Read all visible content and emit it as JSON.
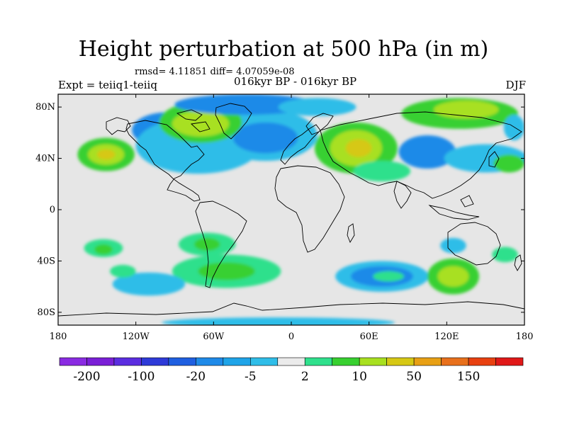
{
  "title": "Height perturbation at 500 hPa (in m)",
  "stats": "rmsd= 4.11851 diff= 4.07059e-08",
  "left_label": "Expt = teiiq1-teiiq",
  "center_label": "016kyr BP - 016kyr BP",
  "right_label": "DJF",
  "map": {
    "projection": "cylindrical-equidistant",
    "lon_range": [
      -180,
      180
    ],
    "lat_range": [
      -90,
      90
    ],
    "lat_ticks": [
      {
        "value": 80,
        "label": "80N"
      },
      {
        "value": 40,
        "label": "40N"
      },
      {
        "value": 0,
        "label": "0"
      },
      {
        "value": -40,
        "label": "40S"
      },
      {
        "value": -80,
        "label": "80S"
      }
    ],
    "lon_ticks": [
      {
        "value": -180,
        "label": "180"
      },
      {
        "value": -120,
        "label": "120W"
      },
      {
        "value": -60,
        "label": "60W"
      },
      {
        "value": 0,
        "label": "0"
      },
      {
        "value": 60,
        "label": "60E"
      },
      {
        "value": 120,
        "label": "120E"
      },
      {
        "value": 180,
        "label": "180"
      }
    ],
    "background_color": "#e6e6e6",
    "contour_regions": [
      {
        "lon": -143,
        "lat": 43,
        "rx": 22,
        "ry": 13,
        "level": 4
      },
      {
        "lon": -143,
        "lat": 43,
        "rx": 14,
        "ry": 8,
        "level": 5
      },
      {
        "lon": -143,
        "lat": 43,
        "rx": 7,
        "ry": 4,
        "level": 6
      },
      {
        "lon": -95,
        "lat": 62,
        "rx": 28,
        "ry": 14,
        "level": 2
      },
      {
        "lon": -72,
        "lat": 50,
        "rx": 48,
        "ry": 22,
        "level": 1
      },
      {
        "lon": -20,
        "lat": 58,
        "rx": 40,
        "ry": 20,
        "level": 1
      },
      {
        "lon": -20,
        "lat": 56,
        "rx": 25,
        "ry": 12,
        "level": 2
      },
      {
        "lon": -70,
        "lat": 68,
        "rx": 32,
        "ry": 16,
        "level": 4
      },
      {
        "lon": -70,
        "lat": 67,
        "rx": 22,
        "ry": 10,
        "level": 5
      },
      {
        "lon": -35,
        "lat": 82,
        "rx": 55,
        "ry": 8,
        "level": 2
      },
      {
        "lon": 20,
        "lat": 80,
        "rx": 30,
        "ry": 7,
        "level": 1
      },
      {
        "lon": 50,
        "lat": 48,
        "rx": 32,
        "ry": 20,
        "level": 4
      },
      {
        "lon": 50,
        "lat": 48,
        "rx": 20,
        "ry": 14,
        "level": 5
      },
      {
        "lon": 52,
        "lat": 48,
        "rx": 10,
        "ry": 7,
        "level": 6
      },
      {
        "lon": 70,
        "lat": 30,
        "rx": 22,
        "ry": 8,
        "level": 3
      },
      {
        "lon": 130,
        "lat": 75,
        "rx": 45,
        "ry": 12,
        "level": 4
      },
      {
        "lon": 135,
        "lat": 78,
        "rx": 25,
        "ry": 7,
        "level": 5
      },
      {
        "lon": 105,
        "lat": 45,
        "rx": 22,
        "ry": 13,
        "level": 2
      },
      {
        "lon": 150,
        "lat": 40,
        "rx": 32,
        "ry": 11,
        "level": 1
      },
      {
        "lon": 168,
        "lat": 36,
        "rx": 12,
        "ry": 7,
        "level": 4
      },
      {
        "lon": 172,
        "lat": 64,
        "rx": 8,
        "ry": 10,
        "level": 1
      },
      {
        "lon": -145,
        "lat": -30,
        "rx": 15,
        "ry": 7,
        "level": 3
      },
      {
        "lon": -145,
        "lat": -31,
        "rx": 7,
        "ry": 4,
        "level": 4
      },
      {
        "lon": -65,
        "lat": -27,
        "rx": 22,
        "ry": 9,
        "level": 3
      },
      {
        "lon": -65,
        "lat": -27,
        "rx": 10,
        "ry": 5,
        "level": 4
      },
      {
        "lon": -50,
        "lat": -48,
        "rx": 42,
        "ry": 13,
        "level": 3
      },
      {
        "lon": -50,
        "lat": -48,
        "rx": 22,
        "ry": 7,
        "level": 4
      },
      {
        "lon": -110,
        "lat": -58,
        "rx": 28,
        "ry": 9,
        "level": 1
      },
      {
        "lon": -130,
        "lat": -48,
        "rx": 10,
        "ry": 5,
        "level": 3
      },
      {
        "lon": 70,
        "lat": -52,
        "rx": 36,
        "ry": 12,
        "level": 1
      },
      {
        "lon": 70,
        "lat": -52,
        "rx": 24,
        "ry": 8,
        "level": 2
      },
      {
        "lon": 75,
        "lat": -52,
        "rx": 12,
        "ry": 4,
        "level": 3
      },
      {
        "lon": 125,
        "lat": -52,
        "rx": 20,
        "ry": 14,
        "level": 4
      },
      {
        "lon": 125,
        "lat": -52,
        "rx": 12,
        "ry": 8,
        "level": 5
      },
      {
        "lon": 125,
        "lat": -28,
        "rx": 10,
        "ry": 6,
        "level": 1
      },
      {
        "lon": 165,
        "lat": -35,
        "rx": 10,
        "ry": 6,
        "level": 3
      },
      {
        "lon": -10,
        "lat": -88,
        "rx": 90,
        "ry": 4,
        "level": 1
      }
    ]
  },
  "colorbar": {
    "colors": [
      "#8a2be2",
      "#7a1fd6",
      "#5b2de0",
      "#2e3ad8",
      "#1f5fe0",
      "#1f8ae8",
      "#1fa4e8",
      "#2fbde8",
      "#ebebeb",
      "#2fe08c",
      "#38d030",
      "#a8e020",
      "#d6c814",
      "#e8a014",
      "#e8701c",
      "#e84010",
      "#e01818"
    ],
    "labels": [
      {
        "boundary": 1,
        "text": "-200"
      },
      {
        "boundary": 3,
        "text": "-100"
      },
      {
        "boundary": 5,
        "text": "-20"
      },
      {
        "boundary": 7,
        "text": "-5"
      },
      {
        "boundary": 9,
        "text": "2"
      },
      {
        "boundary": 11,
        "text": "10"
      },
      {
        "boundary": 13,
        "text": "50"
      },
      {
        "boundary": 15,
        "text": "150"
      }
    ]
  },
  "level_colors": [
    "#e6e6e6",
    "#2fbde8",
    "#1f8ae8",
    "#2fe08c",
    "#38d030",
    "#a8e020",
    "#d6c814"
  ]
}
